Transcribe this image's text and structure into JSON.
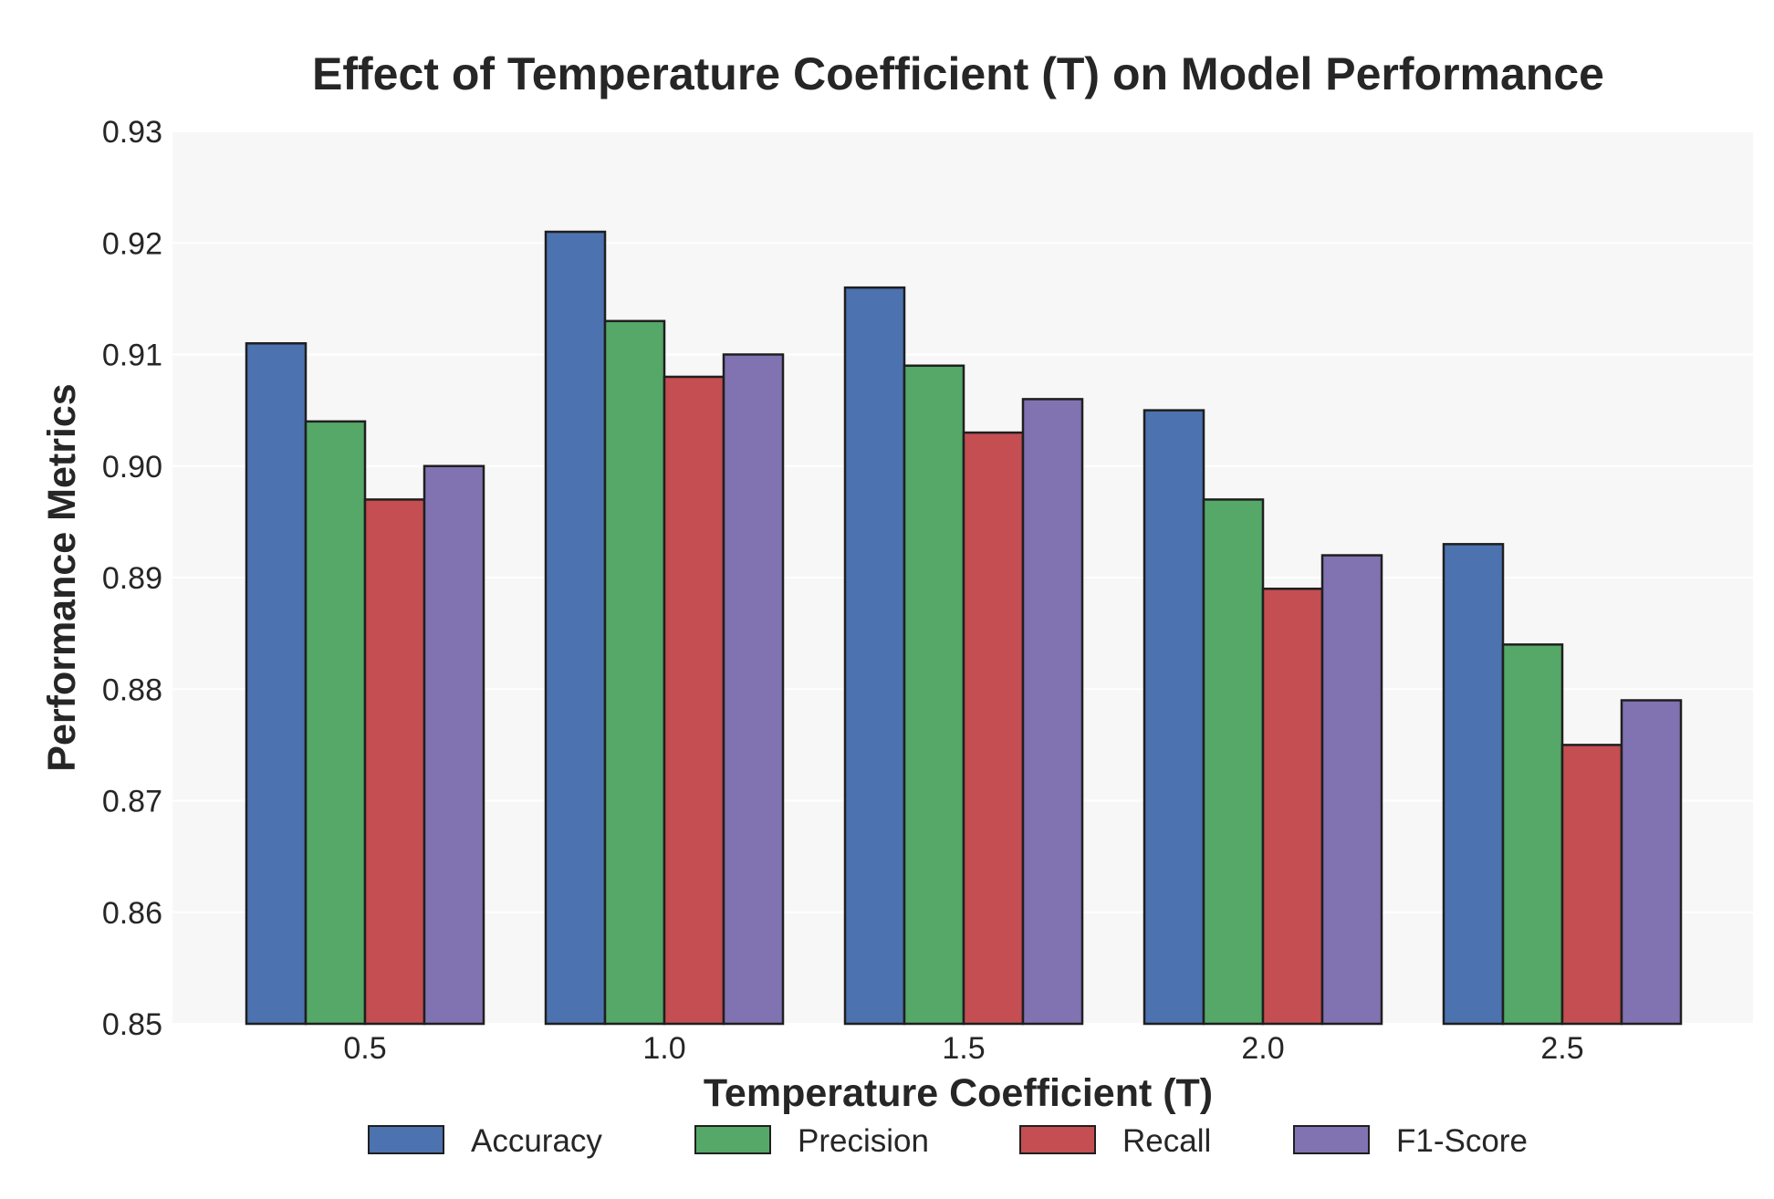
{
  "chart_data": {
    "type": "bar",
    "title": "Effect of Temperature Coefficient (T) on Model Performance",
    "xlabel": "Temperature Coefficient (T)",
    "ylabel": "Performance Metrics",
    "categories": [
      "0.5",
      "1.0",
      "1.5",
      "2.0",
      "2.5"
    ],
    "ylim": [
      0.85,
      0.93
    ],
    "yticks": [
      "0.85",
      "0.86",
      "0.87",
      "0.88",
      "0.89",
      "0.90",
      "0.91",
      "0.92",
      "0.93"
    ],
    "grid": true,
    "legend_position": "bottom-center",
    "series": [
      {
        "name": "Accuracy",
        "color": "#4c72b0",
        "values": [
          0.911,
          0.921,
          0.916,
          0.905,
          0.893
        ]
      },
      {
        "name": "Precision",
        "color": "#55a868",
        "values": [
          0.904,
          0.913,
          0.909,
          0.897,
          0.884
        ]
      },
      {
        "name": "Recall",
        "color": "#c44e52",
        "values": [
          0.897,
          0.908,
          0.903,
          0.889,
          0.875
        ]
      },
      {
        "name": "F1-Score",
        "color": "#8172b2",
        "values": [
          0.9,
          0.91,
          0.906,
          0.892,
          0.879
        ]
      }
    ]
  }
}
